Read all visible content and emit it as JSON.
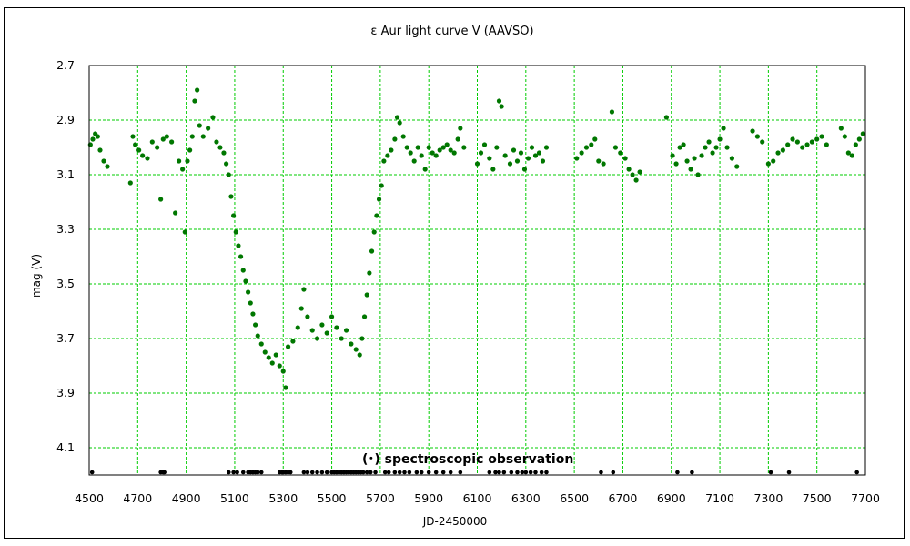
{
  "chart_data": {
    "type": "scatter",
    "title": "ε Aur   light curve  V (AAVSO)",
    "xlabel": "JD-2450000",
    "ylabel": "mag (V)",
    "xlim": [
      4500,
      7700
    ],
    "ylim": [
      2.7,
      4.2
    ],
    "y_inverted": true,
    "x_ticks": [
      4500,
      4700,
      4900,
      5100,
      5300,
      5500,
      5700,
      5900,
      6100,
      6300,
      6500,
      6700,
      6900,
      7100,
      7300,
      7500,
      7700
    ],
    "y_ticks": [
      "2.7",
      "2.9",
      "3.1",
      "3.3",
      "3.5",
      "3.7",
      "3.9",
      "4.1"
    ],
    "grid": true,
    "grid_color": "#00cc00",
    "marker_color": "#007700",
    "annotation": "(･) spectroscopic observation",
    "series": [
      {
        "kind": "V-magnitude",
        "color": "#007700",
        "points": [
          [
            4505,
            2.99
          ],
          [
            4515,
            2.97
          ],
          [
            4525,
            2.95
          ],
          [
            4535,
            2.96
          ],
          [
            4545,
            3.01
          ],
          [
            4560,
            3.05
          ],
          [
            4575,
            3.07
          ],
          [
            4670,
            3.13
          ],
          [
            4680,
            2.96
          ],
          [
            4690,
            2.99
          ],
          [
            4705,
            3.01
          ],
          [
            4720,
            3.03
          ],
          [
            4740,
            3.04
          ],
          [
            4760,
            2.98
          ],
          [
            4780,
            3.0
          ],
          [
            4795,
            3.19
          ],
          [
            4805,
            2.97
          ],
          [
            4820,
            2.96
          ],
          [
            4840,
            2.98
          ],
          [
            4855,
            3.24
          ],
          [
            4870,
            3.05
          ],
          [
            4885,
            3.08
          ],
          [
            4895,
            3.31
          ],
          [
            4905,
            3.05
          ],
          [
            4915,
            3.01
          ],
          [
            4925,
            2.96
          ],
          [
            4935,
            2.83
          ],
          [
            4945,
            2.79
          ],
          [
            4955,
            2.92
          ],
          [
            4970,
            2.96
          ],
          [
            4990,
            2.93
          ],
          [
            5010,
            2.89
          ],
          [
            5025,
            2.98
          ],
          [
            5040,
            3.0
          ],
          [
            5055,
            3.02
          ],
          [
            5065,
            3.06
          ],
          [
            5075,
            3.1
          ],
          [
            5085,
            3.18
          ],
          [
            5095,
            3.25
          ],
          [
            5105,
            3.31
          ],
          [
            5115,
            3.36
          ],
          [
            5125,
            3.4
          ],
          [
            5135,
            3.45
          ],
          [
            5145,
            3.49
          ],
          [
            5155,
            3.53
          ],
          [
            5165,
            3.57
          ],
          [
            5175,
            3.61
          ],
          [
            5185,
            3.65
          ],
          [
            5195,
            3.69
          ],
          [
            5210,
            3.72
          ],
          [
            5225,
            3.75
          ],
          [
            5240,
            3.77
          ],
          [
            5255,
            3.79
          ],
          [
            5270,
            3.76
          ],
          [
            5285,
            3.8
          ],
          [
            5300,
            3.82
          ],
          [
            5310,
            3.88
          ],
          [
            5320,
            3.73
          ],
          [
            5340,
            3.71
          ],
          [
            5360,
            3.66
          ],
          [
            5375,
            3.59
          ],
          [
            5385,
            3.52
          ],
          [
            5400,
            3.62
          ],
          [
            5420,
            3.67
          ],
          [
            5440,
            3.7
          ],
          [
            5460,
            3.65
          ],
          [
            5480,
            3.68
          ],
          [
            5500,
            3.62
          ],
          [
            5520,
            3.66
          ],
          [
            5540,
            3.7
          ],
          [
            5560,
            3.67
          ],
          [
            5580,
            3.72
          ],
          [
            5600,
            3.74
          ],
          [
            5615,
            3.76
          ],
          [
            5625,
            3.7
          ],
          [
            5635,
            3.62
          ],
          [
            5645,
            3.54
          ],
          [
            5655,
            3.46
          ],
          [
            5665,
            3.38
          ],
          [
            5675,
            3.31
          ],
          [
            5685,
            3.25
          ],
          [
            5695,
            3.19
          ],
          [
            5705,
            3.14
          ],
          [
            5715,
            3.05
          ],
          [
            5730,
            3.03
          ],
          [
            5745,
            3.01
          ],
          [
            5760,
            2.97
          ],
          [
            5770,
            2.89
          ],
          [
            5780,
            2.91
          ],
          [
            5795,
            2.96
          ],
          [
            5810,
            3.0
          ],
          [
            5825,
            3.02
          ],
          [
            5840,
            3.05
          ],
          [
            5855,
            3.0
          ],
          [
            5870,
            3.03
          ],
          [
            5885,
            3.08
          ],
          [
            5900,
            3.0
          ],
          [
            5915,
            3.02
          ],
          [
            5930,
            3.03
          ],
          [
            5945,
            3.01
          ],
          [
            5960,
            3.0
          ],
          [
            5975,
            2.99
          ],
          [
            5990,
            3.01
          ],
          [
            6005,
            3.02
          ],
          [
            6020,
            2.97
          ],
          [
            6030,
            2.93
          ],
          [
            6045,
            3.0
          ],
          [
            6100,
            3.06
          ],
          [
            6115,
            3.02
          ],
          [
            6130,
            2.99
          ],
          [
            6150,
            3.04
          ],
          [
            6165,
            3.08
          ],
          [
            6180,
            3.0
          ],
          [
            6190,
            2.83
          ],
          [
            6200,
            2.85
          ],
          [
            6215,
            3.03
          ],
          [
            6235,
            3.06
          ],
          [
            6250,
            3.01
          ],
          [
            6265,
            3.05
          ],
          [
            6280,
            3.02
          ],
          [
            6295,
            3.08
          ],
          [
            6310,
            3.04
          ],
          [
            6325,
            3.0
          ],
          [
            6340,
            3.03
          ],
          [
            6355,
            3.02
          ],
          [
            6370,
            3.05
          ],
          [
            6385,
            3.0
          ],
          [
            6510,
            3.04
          ],
          [
            6530,
            3.02
          ],
          [
            6550,
            3.0
          ],
          [
            6570,
            2.99
          ],
          [
            6585,
            2.97
          ],
          [
            6600,
            3.05
          ],
          [
            6620,
            3.06
          ],
          [
            6655,
            2.87
          ],
          [
            6670,
            3.0
          ],
          [
            6690,
            3.02
          ],
          [
            6710,
            3.04
          ],
          [
            6725,
            3.08
          ],
          [
            6740,
            3.1
          ],
          [
            6755,
            3.12
          ],
          [
            6770,
            3.09
          ],
          [
            6880,
            2.89
          ],
          [
            6905,
            3.03
          ],
          [
            6920,
            3.06
          ],
          [
            6935,
            3.0
          ],
          [
            6950,
            2.99
          ],
          [
            6965,
            3.05
          ],
          [
            6980,
            3.08
          ],
          [
            6995,
            3.04
          ],
          [
            7010,
            3.1
          ],
          [
            7025,
            3.03
          ],
          [
            7040,
            3.0
          ],
          [
            7055,
            2.98
          ],
          [
            7070,
            3.02
          ],
          [
            7085,
            3.0
          ],
          [
            7100,
            2.97
          ],
          [
            7115,
            2.93
          ],
          [
            7130,
            3.0
          ],
          [
            7150,
            3.04
          ],
          [
            7170,
            3.07
          ],
          [
            7235,
            2.94
          ],
          [
            7255,
            2.96
          ],
          [
            7275,
            2.98
          ],
          [
            7300,
            3.06
          ],
          [
            7320,
            3.05
          ],
          [
            7340,
            3.02
          ],
          [
            7360,
            3.01
          ],
          [
            7380,
            2.99
          ],
          [
            7400,
            2.97
          ],
          [
            7420,
            2.98
          ],
          [
            7440,
            3.0
          ],
          [
            7460,
            2.99
          ],
          [
            7480,
            2.98
          ],
          [
            7500,
            2.97
          ],
          [
            7520,
            2.96
          ],
          [
            7540,
            2.99
          ],
          [
            7600,
            2.93
          ],
          [
            7615,
            2.96
          ],
          [
            7630,
            3.02
          ],
          [
            7645,
            3.03
          ],
          [
            7660,
            2.99
          ],
          [
            7675,
            2.97
          ],
          [
            7690,
            2.95
          ]
        ]
      },
      {
        "kind": "spectroscopic",
        "color": "#000000",
        "y": 4.19,
        "x": [
          4512,
          4795,
          4805,
          4810,
          5075,
          5095,
          5110,
          5135,
          5155,
          5165,
          5175,
          5185,
          5195,
          5210,
          5285,
          5295,
          5300,
          5310,
          5320,
          5330,
          5385,
          5400,
          5420,
          5440,
          5460,
          5480,
          5500,
          5510,
          5520,
          5530,
          5540,
          5550,
          5560,
          5570,
          5580,
          5590,
          5600,
          5610,
          5620,
          5630,
          5645,
          5660,
          5680,
          5720,
          5735,
          5760,
          5780,
          5800,
          5820,
          5850,
          5870,
          5900,
          5930,
          5960,
          5990,
          6030,
          6150,
          6175,
          6190,
          6210,
          6240,
          6265,
          6285,
          6300,
          6320,
          6340,
          6365,
          6385,
          6610,
          6660,
          6925,
          6985,
          7310,
          7385,
          7665
        ]
      }
    ]
  }
}
